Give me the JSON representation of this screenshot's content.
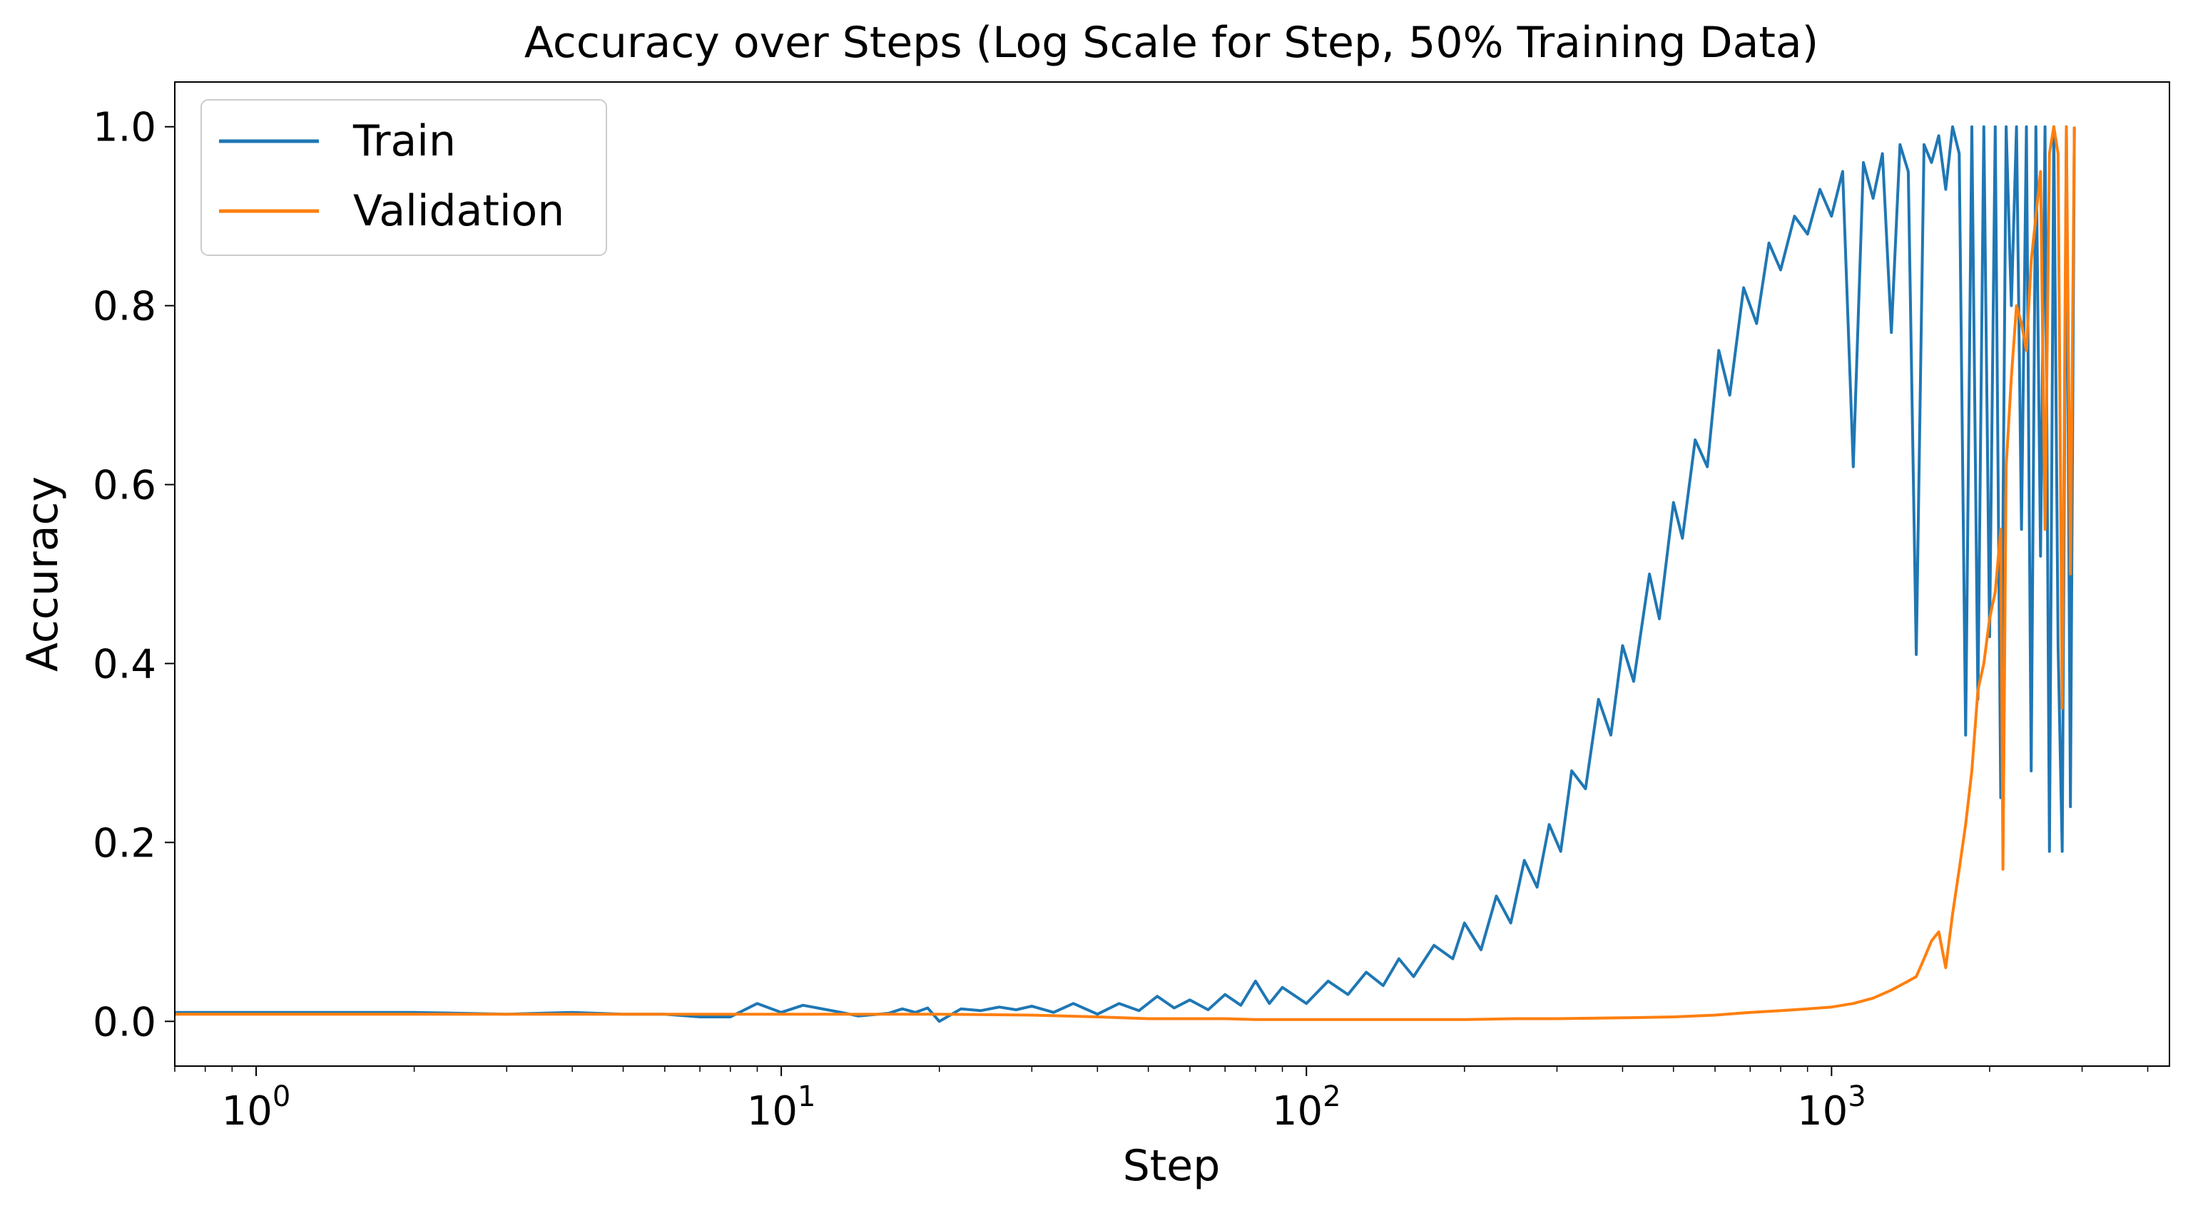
{
  "chart_data": {
    "type": "line",
    "title": "Accuracy over Steps (Log Scale for Step, 50% Training Data)",
    "xlabel": "Step",
    "ylabel": "Accuracy",
    "xscale": "log",
    "xlim": [
      0.7,
      4400
    ],
    "ylim": [
      -0.05,
      1.05
    ],
    "x_ticks": [
      {
        "base": "10",
        "exp": "0",
        "value": 1
      },
      {
        "base": "10",
        "exp": "1",
        "value": 10
      },
      {
        "base": "10",
        "exp": "2",
        "value": 100
      },
      {
        "base": "10",
        "exp": "3",
        "value": 1000
      }
    ],
    "y_ticks": [
      "0.0",
      "0.2",
      "0.4",
      "0.6",
      "0.8",
      "1.0"
    ],
    "grid": false,
    "legend_position": "upper-left",
    "colors": {
      "train": "#1f77b4",
      "validation": "#ff7f0e"
    },
    "series": [
      {
        "name": "Train",
        "color": "#1f77b4",
        "points": [
          [
            0.7,
            0.01
          ],
          [
            1,
            0.01
          ],
          [
            2,
            0.01
          ],
          [
            3,
            0.008
          ],
          [
            4,
            0.01
          ],
          [
            5,
            0.008
          ],
          [
            6,
            0.008
          ],
          [
            7,
            0.005
          ],
          [
            8,
            0.005
          ],
          [
            9,
            0.02
          ],
          [
            10,
            0.01
          ],
          [
            11,
            0.018
          ],
          [
            13,
            0.01
          ],
          [
            14,
            0.006
          ],
          [
            16,
            0.009
          ],
          [
            17,
            0.014
          ],
          [
            18,
            0.01
          ],
          [
            19,
            0.015
          ],
          [
            20,
            0.0
          ],
          [
            22,
            0.014
          ],
          [
            24,
            0.012
          ],
          [
            26,
            0.016
          ],
          [
            28,
            0.013
          ],
          [
            30,
            0.017
          ],
          [
            33,
            0.01
          ],
          [
            36,
            0.02
          ],
          [
            40,
            0.008
          ],
          [
            44,
            0.02
          ],
          [
            48,
            0.012
          ],
          [
            52,
            0.028
          ],
          [
            56,
            0.015
          ],
          [
            60,
            0.024
          ],
          [
            65,
            0.013
          ],
          [
            70,
            0.03
          ],
          [
            75,
            0.018
          ],
          [
            80,
            0.045
          ],
          [
            85,
            0.02
          ],
          [
            90,
            0.038
          ],
          [
            100,
            0.02
          ],
          [
            110,
            0.045
          ],
          [
            120,
            0.03
          ],
          [
            130,
            0.055
          ],
          [
            140,
            0.04
          ],
          [
            150,
            0.07
          ],
          [
            160,
            0.05
          ],
          [
            175,
            0.085
          ],
          [
            190,
            0.07
          ],
          [
            200,
            0.11
          ],
          [
            215,
            0.08
          ],
          [
            230,
            0.14
          ],
          [
            245,
            0.11
          ],
          [
            260,
            0.18
          ],
          [
            275,
            0.15
          ],
          [
            290,
            0.22
          ],
          [
            305,
            0.19
          ],
          [
            320,
            0.28
          ],
          [
            340,
            0.26
          ],
          [
            360,
            0.36
          ],
          [
            380,
            0.32
          ],
          [
            400,
            0.42
          ],
          [
            420,
            0.38
          ],
          [
            450,
            0.5
          ],
          [
            470,
            0.45
          ],
          [
            500,
            0.58
          ],
          [
            520,
            0.54
          ],
          [
            550,
            0.65
          ],
          [
            580,
            0.62
          ],
          [
            610,
            0.75
          ],
          [
            640,
            0.7
          ],
          [
            680,
            0.82
          ],
          [
            720,
            0.78
          ],
          [
            760,
            0.87
          ],
          [
            800,
            0.84
          ],
          [
            850,
            0.9
          ],
          [
            900,
            0.88
          ],
          [
            950,
            0.93
          ],
          [
            1000,
            0.9
          ],
          [
            1050,
            0.95
          ],
          [
            1100,
            0.62
          ],
          [
            1150,
            0.96
          ],
          [
            1200,
            0.92
          ],
          [
            1250,
            0.97
          ],
          [
            1300,
            0.77
          ],
          [
            1350,
            0.98
          ],
          [
            1400,
            0.95
          ],
          [
            1450,
            0.41
          ],
          [
            1500,
            0.98
          ],
          [
            1550,
            0.96
          ],
          [
            1600,
            0.99
          ],
          [
            1650,
            0.93
          ],
          [
            1700,
            1.0
          ],
          [
            1750,
            0.97
          ],
          [
            1800,
            0.32
          ],
          [
            1850,
            1.0
          ],
          [
            1900,
            0.36
          ],
          [
            1950,
            1.0
          ],
          [
            2000,
            0.43
          ],
          [
            2050,
            1.0
          ],
          [
            2100,
            0.25
          ],
          [
            2150,
            1.0
          ],
          [
            2200,
            0.8
          ],
          [
            2250,
            1.0
          ],
          [
            2300,
            0.55
          ],
          [
            2350,
            1.0
          ],
          [
            2400,
            0.28
          ],
          [
            2450,
            1.0
          ],
          [
            2500,
            0.52
          ],
          [
            2550,
            1.0
          ],
          [
            2600,
            0.19
          ],
          [
            2650,
            1.0
          ],
          [
            2700,
            0.42
          ],
          [
            2750,
            0.19
          ],
          [
            2800,
            1.0
          ],
          [
            2850,
            0.24
          ],
          [
            2900,
            1.0
          ]
        ]
      },
      {
        "name": "Validation",
        "color": "#ff7f0e",
        "points": [
          [
            0.7,
            0.008
          ],
          [
            1,
            0.008
          ],
          [
            2,
            0.008
          ],
          [
            3,
            0.008
          ],
          [
            5,
            0.008
          ],
          [
            10,
            0.008
          ],
          [
            20,
            0.008
          ],
          [
            30,
            0.007
          ],
          [
            40,
            0.005
          ],
          [
            50,
            0.003
          ],
          [
            60,
            0.003
          ],
          [
            70,
            0.003
          ],
          [
            80,
            0.002
          ],
          [
            100,
            0.002
          ],
          [
            150,
            0.002
          ],
          [
            200,
            0.002
          ],
          [
            250,
            0.003
          ],
          [
            300,
            0.003
          ],
          [
            400,
            0.004
          ],
          [
            500,
            0.005
          ],
          [
            600,
            0.007
          ],
          [
            700,
            0.01
          ],
          [
            800,
            0.012
          ],
          [
            900,
            0.014
          ],
          [
            1000,
            0.016
          ],
          [
            1100,
            0.02
          ],
          [
            1200,
            0.026
          ],
          [
            1300,
            0.035
          ],
          [
            1400,
            0.045
          ],
          [
            1450,
            0.05
          ],
          [
            1500,
            0.07
          ],
          [
            1550,
            0.09
          ],
          [
            1600,
            0.1
          ],
          [
            1650,
            0.06
          ],
          [
            1700,
            0.12
          ],
          [
            1750,
            0.17
          ],
          [
            1800,
            0.22
          ],
          [
            1850,
            0.28
          ],
          [
            1900,
            0.37
          ],
          [
            1950,
            0.4
          ],
          [
            2000,
            0.45
          ],
          [
            2050,
            0.48
          ],
          [
            2100,
            0.55
          ],
          [
            2120,
            0.17
          ],
          [
            2150,
            0.62
          ],
          [
            2200,
            0.72
          ],
          [
            2250,
            0.8
          ],
          [
            2300,
            0.78
          ],
          [
            2350,
            0.75
          ],
          [
            2400,
            0.85
          ],
          [
            2450,
            0.9
          ],
          [
            2500,
            0.95
          ],
          [
            2550,
            0.55
          ],
          [
            2600,
            0.97
          ],
          [
            2650,
            1.0
          ],
          [
            2700,
            0.97
          ],
          [
            2750,
            0.35
          ],
          [
            2800,
            1.0
          ],
          [
            2850,
            0.5
          ],
          [
            2900,
            1.0
          ]
        ]
      }
    ]
  }
}
